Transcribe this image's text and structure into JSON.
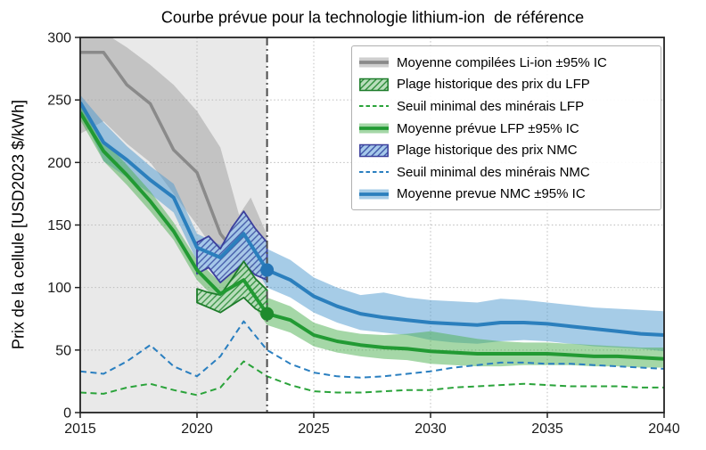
{
  "chart_data": {
    "type": "line",
    "title": "Courbe prévue pour la technologie lithium-ion  de référence",
    "ylabel": "Prix de la cellule [USD2023 $/kWh]",
    "xlabel": "",
    "xlim": [
      2015,
      2040
    ],
    "ylim": [
      0,
      300
    ],
    "xticks": [
      2015,
      2020,
      2025,
      2030,
      2035,
      2040
    ],
    "yticks": [
      0,
      50,
      100,
      150,
      200,
      250,
      300
    ],
    "grid": true,
    "legend_position": "upper right",
    "hist_region": {
      "from": 2015,
      "to": 2023
    },
    "divider_x": 2023,
    "colors": {
      "hist_bg": "#e9e9e9",
      "grid": "#bdbdbd",
      "frame": "#222222",
      "divider": "#4d4d4d"
    },
    "series": [
      {
        "name": "li_ion_compiled",
        "label": "Moyenne compilées Li-ion ±95% IC",
        "kind": "line+band",
        "color": "#8a8a8a",
        "band_color": "#9e9e9e",
        "band_opacity": 0.5,
        "width": 3.5,
        "x": [
          2015,
          2016,
          2017,
          2018,
          2019,
          2020,
          2021,
          2021.8,
          2022.3,
          2023
        ],
        "y": [
          288,
          288,
          262,
          247,
          210,
          192,
          143,
          124,
          118,
          113
        ],
        "band_high": [
          304,
          304,
          292,
          278,
          262,
          241,
          212,
          158,
          172,
          142
        ],
        "band_low": [
          223,
          233,
          215,
          200,
          175,
          150,
          123,
          108,
          112,
          107
        ]
      },
      {
        "name": "lfp_forecast",
        "label": "Moyenne prévue LFP ±95% IC",
        "kind": "line+band",
        "color": "#229a33",
        "band_color": "#4caf50",
        "band_opacity": 0.5,
        "width": 4,
        "x": [
          2015,
          2016,
          2017,
          2018,
          2019,
          2020,
          2021,
          2022,
          2023,
          2024,
          2025,
          2026,
          2027,
          2028,
          2029,
          2030,
          2031,
          2032,
          2033,
          2034,
          2035,
          2036,
          2037,
          2038,
          2039,
          2040
        ],
        "y": [
          240,
          209,
          190,
          169,
          145,
          114,
          95,
          106,
          79,
          74,
          62,
          57,
          54,
          52,
          51,
          49,
          48,
          47,
          47,
          47,
          47,
          46,
          45,
          45,
          44,
          43
        ],
        "band_high": [
          246,
          218,
          198,
          177,
          152,
          122,
          104,
          119,
          92,
          85,
          72,
          66,
          63,
          62,
          63,
          65,
          62,
          59,
          57,
          56,
          56,
          55,
          54,
          53,
          52,
          52
        ],
        "band_low": [
          234,
          201,
          182,
          161,
          138,
          106,
          87,
          97,
          70,
          64,
          53,
          48,
          45,
          43,
          42,
          39,
          38,
          37,
          37,
          38,
          38,
          38,
          37,
          37,
          36,
          36
        ]
      },
      {
        "name": "nmc_forecast",
        "label": "Moyenne prevue NMC ±95% IC",
        "kind": "line+band",
        "color": "#2b7fbd",
        "band_color": "#4d9ad0",
        "band_opacity": 0.5,
        "width": 4,
        "x": [
          2015,
          2016,
          2017,
          2018,
          2019,
          2020,
          2021,
          2022,
          2023,
          2024,
          2025,
          2026,
          2027,
          2028,
          2029,
          2030,
          2031,
          2032,
          2033,
          2034,
          2035,
          2036,
          2037,
          2038,
          2039,
          2040
        ],
        "y": [
          248,
          216,
          202,
          186,
          172,
          132,
          124,
          143,
          114,
          106,
          93,
          85,
          79,
          76,
          74,
          72,
          71,
          70,
          72,
          72,
          71,
          69,
          67,
          65,
          63,
          62
        ],
        "band_high": [
          254,
          232,
          213,
          197,
          183,
          143,
          134,
          152,
          131,
          122,
          108,
          100,
          94,
          96,
          92,
          90,
          89,
          88,
          91,
          90,
          88,
          86,
          84,
          83,
          82,
          81
        ],
        "band_low": [
          242,
          201,
          188,
          175,
          160,
          121,
          113,
          132,
          100,
          92,
          80,
          72,
          66,
          64,
          62,
          58,
          56,
          55,
          57,
          58,
          57,
          55,
          53,
          52,
          51,
          49
        ]
      },
      {
        "name": "lfp_hist_range",
        "label": "Plage historique des prix du LFP",
        "kind": "hatched-range",
        "fill": "#b9debc",
        "edge": "#1d7c2a",
        "hatch": "#2f8f3c",
        "x": [
          2020,
          2020.5,
          2021,
          2021.5,
          2022,
          2022.5,
          2023
        ],
        "high": [
          99,
          96,
          94,
          107,
          121,
          107,
          98
        ],
        "low": [
          88,
          84,
          80,
          86,
          92,
          83,
          78
        ]
      },
      {
        "name": "nmc_hist_range",
        "label": "Plage historique des prix NMC",
        "kind": "hatched-range",
        "fill": "#a5c8ea",
        "edge": "#3c3f9c",
        "hatch": "#4056a8",
        "x": [
          2020,
          2020.5,
          2021,
          2021.5,
          2022,
          2022.5,
          2023
        ],
        "high": [
          136,
          141,
          131,
          148,
          161,
          147,
          136
        ],
        "low": [
          111,
          116,
          104,
          112,
          119,
          110,
          106
        ]
      },
      {
        "name": "lfp_mineral_floor",
        "label": "Seuil minimal des minérais LFP",
        "kind": "dashed",
        "color": "#2aa33a",
        "x": [
          2015,
          2016,
          2017,
          2018,
          2019,
          2020,
          2021,
          2022,
          2023,
          2024,
          2025,
          2026,
          2027,
          2028,
          2029,
          2030,
          2031,
          2032,
          2033,
          2034,
          2035,
          2036,
          2037,
          2038,
          2039,
          2040
        ],
        "y": [
          16,
          15,
          20,
          23,
          18,
          14,
          20,
          41,
          29,
          22,
          17,
          16,
          16,
          17,
          18,
          18,
          20,
          21,
          22,
          23,
          22,
          21,
          21,
          21,
          20,
          20
        ]
      },
      {
        "name": "nmc_mineral_floor",
        "label": "Seuil minimal des minérais NMC",
        "kind": "dashed",
        "color": "#2a7fc0",
        "x": [
          2015,
          2016,
          2017,
          2018,
          2019,
          2020,
          2021,
          2022,
          2023,
          2024,
          2025,
          2026,
          2027,
          2028,
          2029,
          2030,
          2031,
          2032,
          2033,
          2034,
          2035,
          2036,
          2037,
          2038,
          2039,
          2040
        ],
        "y": [
          33,
          31,
          41,
          54,
          37,
          29,
          45,
          73,
          50,
          39,
          32,
          29,
          28,
          29,
          31,
          33,
          36,
          38,
          40,
          40,
          39,
          39,
          38,
          37,
          36,
          35
        ]
      }
    ],
    "markers": [
      {
        "series": "nmc_forecast",
        "x": 2023,
        "y": 114,
        "color": "#2575b5",
        "r": 7.5
      },
      {
        "series": "lfp_forecast",
        "x": 2023,
        "y": 79,
        "color": "#1f8b2d",
        "r": 7.5
      }
    ],
    "legend": [
      {
        "series": "li_ion_compiled",
        "swatch": "band-line",
        "label": "Moyenne compilées Li-ion ±95% IC"
      },
      {
        "series": "lfp_hist_range",
        "swatch": "hatch",
        "label": "Plage historique des prix du LFP"
      },
      {
        "series": "lfp_mineral_floor",
        "swatch": "dash",
        "label": "Seuil minimal des minérais LFP"
      },
      {
        "series": "lfp_forecast",
        "swatch": "band-line",
        "label": "Moyenne prévue LFP ±95% IC"
      },
      {
        "series": "nmc_hist_range",
        "swatch": "hatch",
        "label": "Plage historique des prix NMC"
      },
      {
        "series": "nmc_mineral_floor",
        "swatch": "dash",
        "label": "Seuil minimal des minérais NMC"
      },
      {
        "series": "nmc_forecast",
        "swatch": "band-line",
        "label": "Moyenne prevue NMC ±95% IC"
      }
    ]
  }
}
